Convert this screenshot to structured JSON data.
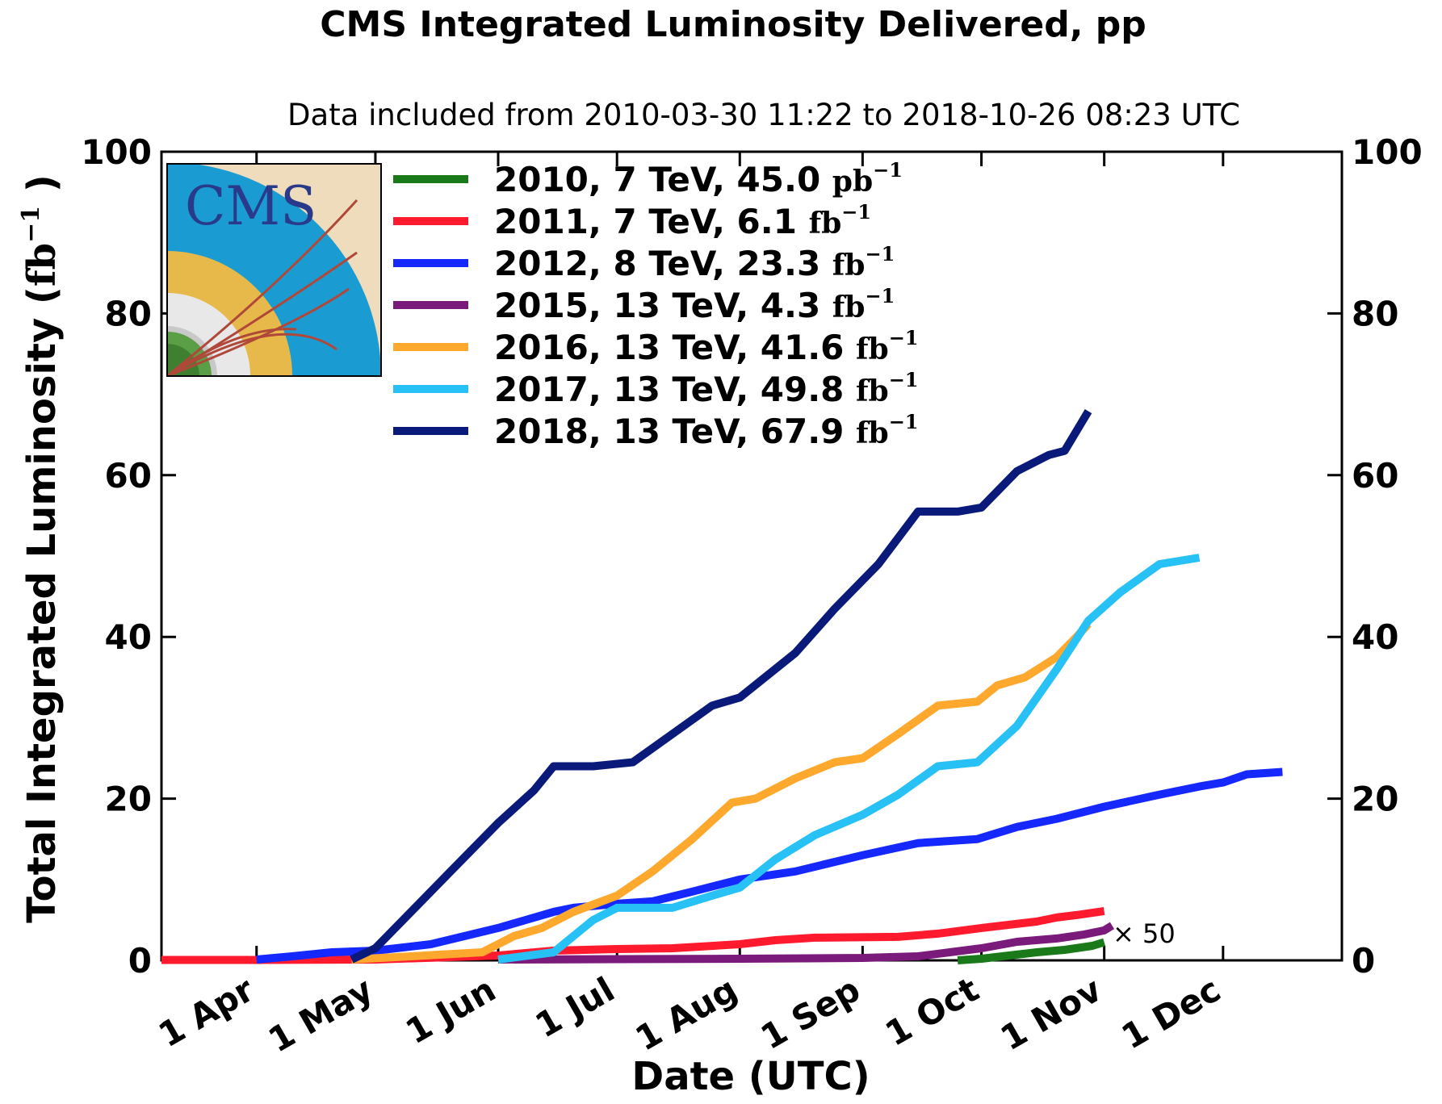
{
  "chart_data": {
    "type": "line",
    "title": "CMS Integrated Luminosity Delivered, pp",
    "subtitle": "Data included from 2010-03-30 11:22 to 2018-10-26 08:23 UTC",
    "xlabel": "Date (UTC)",
    "ylabel": "Total Integrated Luminosity",
    "ylabel_unit_base": "fb",
    "ylabel_unit_exp": "−1",
    "ylim": [
      0,
      100
    ],
    "yticks": [
      "0",
      "20",
      "40",
      "60",
      "80",
      "100"
    ],
    "x_range": [
      "03-08",
      "12-31"
    ],
    "x_ticks": [
      {
        "label": "1 Apr",
        "date": "04-01"
      },
      {
        "label": "1 May",
        "date": "05-01"
      },
      {
        "label": "1 Jun",
        "date": "06-01"
      },
      {
        "label": "1 Jul",
        "date": "07-01"
      },
      {
        "label": "1 Aug",
        "date": "08-01"
      },
      {
        "label": "1 Sep",
        "date": "09-01"
      },
      {
        "label": "1 Oct",
        "date": "10-01"
      },
      {
        "label": "1 Nov",
        "date": "11-01"
      },
      {
        "label": "1 Dec",
        "date": "12-01"
      }
    ],
    "grid": false,
    "legend_position": "top-left, beside the CMS logo",
    "annotation": "× 50",
    "series": [
      {
        "name": "2010, 7 TeV, 45.0",
        "unit": "pb",
        "unit_exp": "−1",
        "color": "#1a7a1a",
        "points": [
          [
            "09-25",
            0
          ],
          [
            "10-01",
            0.2
          ],
          [
            "10-08",
            0.6
          ],
          [
            "10-15",
            1.0
          ],
          [
            "10-22",
            1.3
          ],
          [
            "10-29",
            1.8
          ],
          [
            "11-01",
            2.25
          ]
        ]
      },
      {
        "name": "2011, 7 TeV, 6.1",
        "unit": "fb",
        "unit_exp": "−1",
        "color": "#ff1a2e",
        "points": [
          [
            "03-08",
            0.05
          ],
          [
            "04-01",
            0.05
          ],
          [
            "05-01",
            0.1
          ],
          [
            "06-01",
            0.6
          ],
          [
            "06-15",
            1.2
          ],
          [
            "07-01",
            1.4
          ],
          [
            "07-15",
            1.5
          ],
          [
            "08-01",
            2.0
          ],
          [
            "08-10",
            2.5
          ],
          [
            "08-20",
            2.8
          ],
          [
            "09-10",
            2.9
          ],
          [
            "09-20",
            3.3
          ],
          [
            "10-01",
            4.0
          ],
          [
            "10-15",
            4.8
          ],
          [
            "10-20",
            5.3
          ],
          [
            "10-25",
            5.6
          ],
          [
            "11-01",
            6.1
          ]
        ]
      },
      {
        "name": "2012, 8 TeV, 23.3",
        "unit": "fb",
        "unit_exp": "−1",
        "color": "#1428ff",
        "points": [
          [
            "04-01",
            0.1
          ],
          [
            "04-10",
            0.5
          ],
          [
            "04-20",
            1.0
          ],
          [
            "05-01",
            1.2
          ],
          [
            "05-15",
            2.0
          ],
          [
            "06-01",
            4.0
          ],
          [
            "06-15",
            6.0
          ],
          [
            "06-20",
            6.5
          ],
          [
            "07-01",
            7.0
          ],
          [
            "07-10",
            7.3
          ],
          [
            "07-20",
            8.5
          ],
          [
            "08-01",
            10.0
          ],
          [
            "08-15",
            11.0
          ],
          [
            "09-01",
            13.0
          ],
          [
            "09-15",
            14.5
          ],
          [
            "09-30",
            15.0
          ],
          [
            "10-10",
            16.5
          ],
          [
            "10-20",
            17.5
          ],
          [
            "11-01",
            19.0
          ],
          [
            "11-15",
            20.5
          ],
          [
            "11-25",
            21.5
          ],
          [
            "12-01",
            22.0
          ],
          [
            "12-07",
            23.0
          ],
          [
            "12-16",
            23.3
          ]
        ]
      },
      {
        "name": "2015, 13 TeV, 4.3",
        "unit": "fb",
        "unit_exp": "−1",
        "color": "#7a1a7a",
        "points": [
          [
            "06-01",
            0.1
          ],
          [
            "07-01",
            0.15
          ],
          [
            "08-01",
            0.2
          ],
          [
            "09-01",
            0.3
          ],
          [
            "09-15",
            0.5
          ],
          [
            "10-01",
            1.5
          ],
          [
            "10-10",
            2.3
          ],
          [
            "10-20",
            2.7
          ],
          [
            "10-27",
            3.2
          ],
          [
            "11-01",
            3.7
          ],
          [
            "11-03",
            4.3
          ]
        ]
      },
      {
        "name": "2016, 13 TeV, 41.6",
        "unit": "fb",
        "unit_exp": "−1",
        "color": "#ffa82e",
        "points": [
          [
            "04-25",
            0.1
          ],
          [
            "05-10",
            0.5
          ],
          [
            "05-28",
            1.0
          ],
          [
            "06-05",
            3.0
          ],
          [
            "06-12",
            4.0
          ],
          [
            "06-20",
            6.0
          ],
          [
            "07-01",
            8.0
          ],
          [
            "07-10",
            11.0
          ],
          [
            "07-20",
            15.0
          ],
          [
            "07-30",
            19.5
          ],
          [
            "08-05",
            20.0
          ],
          [
            "08-15",
            22.5
          ],
          [
            "08-25",
            24.5
          ],
          [
            "09-01",
            25.0
          ],
          [
            "09-10",
            28.0
          ],
          [
            "09-20",
            31.5
          ],
          [
            "09-30",
            32.0
          ],
          [
            "10-05",
            34.0
          ],
          [
            "10-12",
            35.0
          ],
          [
            "10-20",
            37.5
          ],
          [
            "10-25",
            40.0
          ],
          [
            "10-28",
            41.6
          ]
        ]
      },
      {
        "name": "2017, 13 TeV, 49.8",
        "unit": "fb",
        "unit_exp": "−1",
        "color": "#27c1f5",
        "points": [
          [
            "06-01",
            0.1
          ],
          [
            "06-15",
            1.0
          ],
          [
            "06-25",
            5.0
          ],
          [
            "07-01",
            6.5
          ],
          [
            "07-15",
            6.5
          ],
          [
            "07-25",
            8.0
          ],
          [
            "08-01",
            9.0
          ],
          [
            "08-10",
            12.5
          ],
          [
            "08-20",
            15.5
          ],
          [
            "09-01",
            18.0
          ],
          [
            "09-10",
            20.5
          ],
          [
            "09-20",
            24.0
          ],
          [
            "09-30",
            24.5
          ],
          [
            "10-10",
            29.0
          ],
          [
            "10-20",
            36.0
          ],
          [
            "10-28",
            42.0
          ],
          [
            "11-05",
            45.5
          ],
          [
            "11-15",
            49.0
          ],
          [
            "11-25",
            49.8
          ]
        ]
      },
      {
        "name": "2018, 13 TeV, 67.9",
        "unit": "fb",
        "unit_exp": "−1",
        "color": "#0a1a7a",
        "points": [
          [
            "04-25",
            0.1
          ],
          [
            "05-01",
            1.5
          ],
          [
            "05-10",
            6.0
          ],
          [
            "05-20",
            11.0
          ],
          [
            "06-01",
            17.0
          ],
          [
            "06-10",
            21.0
          ],
          [
            "06-15",
            24.0
          ],
          [
            "06-25",
            24.0
          ],
          [
            "07-05",
            24.5
          ],
          [
            "07-15",
            28.0
          ],
          [
            "07-25",
            31.5
          ],
          [
            "08-01",
            32.5
          ],
          [
            "08-15",
            38.0
          ],
          [
            "08-25",
            43.5
          ],
          [
            "09-05",
            49.0
          ],
          [
            "09-15",
            55.5
          ],
          [
            "09-25",
            55.5
          ],
          [
            "10-01",
            56.0
          ],
          [
            "10-10",
            60.5
          ],
          [
            "10-18",
            62.5
          ],
          [
            "10-22",
            63.0
          ],
          [
            "10-28",
            67.9
          ]
        ]
      }
    ]
  }
}
